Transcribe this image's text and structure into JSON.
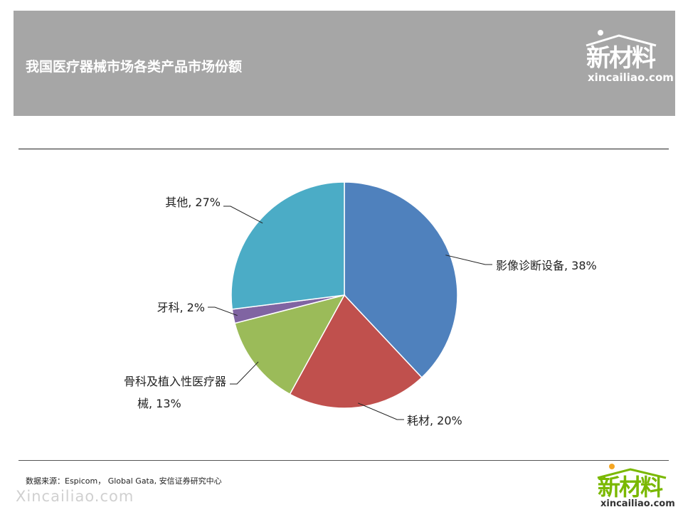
{
  "header": {
    "title": "我国医疗器械市场各类产品市场份额"
  },
  "logo": {
    "cn": "新材料",
    "en": "xincailiao.com"
  },
  "source": "数据来源：Espicom， Global Gata, 安信证券研究中心",
  "watermark": "Xincailiao.com",
  "chart_data": {
    "type": "pie",
    "slices": [
      {
        "label": "影像诊断设备",
        "value": 38,
        "color": "#4f81bd",
        "text": "影像诊断设备, 38%"
      },
      {
        "label": "耗材",
        "value": 20,
        "color": "#c0504d",
        "text": "耗材, 20%"
      },
      {
        "label": "骨科及植入性医疗器械",
        "value": 13,
        "color": "#9bbb59",
        "text_lines": [
          "骨科及植入性医疗器",
          "械, 13%"
        ]
      },
      {
        "label": "牙科",
        "value": 2,
        "color": "#8064a2",
        "text": "牙科, 2%"
      },
      {
        "label": "其他",
        "value": 27,
        "color": "#4bacc6",
        "text": "其他, 27%"
      }
    ],
    "start": "top",
    "direction": "clockwise",
    "legend": "none"
  }
}
